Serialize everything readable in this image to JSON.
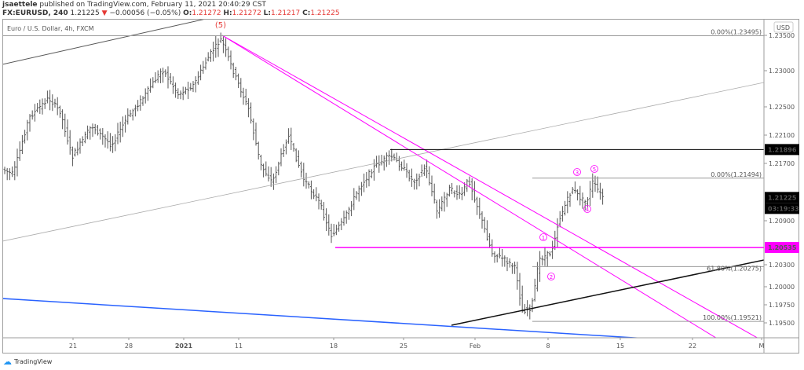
{
  "header": {
    "author": "jsaettele",
    "published": "published on TradingView.com, February 11, 2021 20:40:29 CST",
    "symbol": "FX:EURUSD, 240",
    "last": "1.21225",
    "change": "−0.00056 (−0.05%)",
    "o_label": "O:",
    "o": "1.21272",
    "h_label": "H:",
    "h": "1.21272",
    "l_label": "L:",
    "l": "1.21217",
    "c_label": "C:",
    "c": "1.21225"
  },
  "instrument": "Euro / U.S. Dollar, 4h, FXCM",
  "brand": "TradingView",
  "colors": {
    "down": "#e53935",
    "magenta": "#ff00ff",
    "blue": "#2962ff",
    "bars": "#555555"
  },
  "chart_data": {
    "type": "ohlc-bar",
    "currency": "USD",
    "y_ticks": [
      "1.23500",
      "1.23000",
      "1.22500",
      "1.22100",
      "1.21700",
      "1.20900",
      "1.20300",
      "1.20000",
      "1.19750",
      "1.19500"
    ],
    "x_ticks": [
      "21",
      "28",
      "2021",
      "11",
      "18",
      "25",
      "Feb",
      "8",
      "15",
      "22",
      "M"
    ],
    "price_labels": [
      {
        "value": "1.21896",
        "bg": "#000000"
      },
      {
        "value": "1.21225",
        "bg": "#000000"
      },
      {
        "value": "03:19:33",
        "bg": "#000000"
      },
      {
        "value": "1.20535",
        "bg": "#ff00ff"
      }
    ],
    "fib_levels": [
      {
        "label": "0.00%(1.23495)",
        "price": 1.23495
      },
      {
        "label": "0.00%(1.21494)",
        "price": 1.21494
      },
      {
        "label": "61.80%(1.20275)",
        "price": 1.20275
      },
      {
        "label": "100.00%(1.19521)",
        "price": 1.19521
      }
    ],
    "horizontal_levels": [
      {
        "price": 1.21896,
        "color": "#000000"
      },
      {
        "price": 1.20535,
        "color": "#ff00ff"
      }
    ],
    "wave_labels": [
      "(5)",
      "1",
      "2",
      "3",
      "4",
      "5"
    ]
  }
}
